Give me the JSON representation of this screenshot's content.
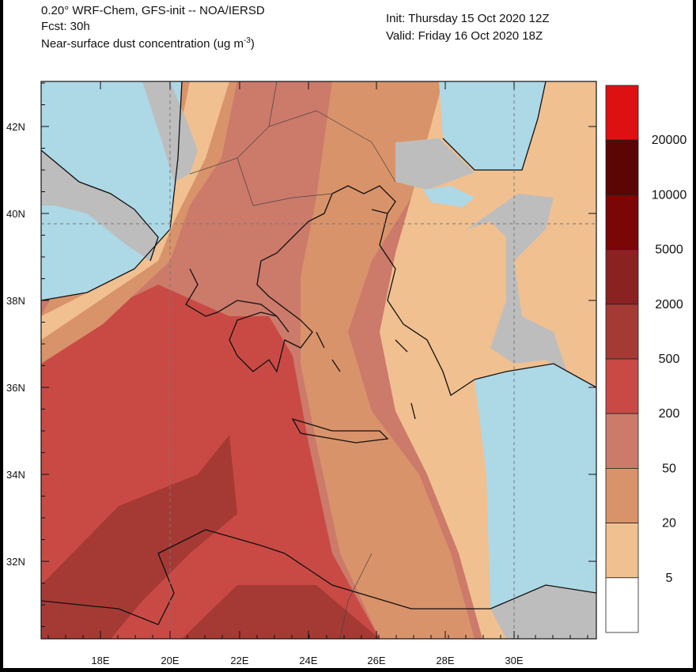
{
  "header": {
    "model_line": "0.20° WRF-Chem, GFS-init -- NOA/IERSD",
    "forecast": "Fcst: 30h",
    "field": {
      "text": "Near-surface dust concentration (ug m",
      "exponent": "-3",
      "close": ")"
    },
    "init": "Init: Thursday 15 Oct 2020  12Z",
    "valid": "Valid: Friday 16 Oct 2020  18Z"
  },
  "map": {
    "lat_labels": [
      "42N",
      "40N",
      "38N",
      "36N",
      "34N",
      "32N"
    ],
    "lon_labels": [
      "18E",
      "20E",
      "22E",
      "24E",
      "26E",
      "28E",
      "30E"
    ]
  },
  "colorbar": {
    "colors": [
      "#dd1111",
      "#5c0505",
      "#7a0606",
      "#8a2222",
      "#a53a35",
      "#c94a45",
      "#cc7a6a",
      "#d9936a",
      "#f0c090",
      "#ffffff"
    ],
    "levels": [
      20000,
      10000,
      5000,
      2000,
      500,
      200,
      50,
      20,
      5
    ]
  }
}
